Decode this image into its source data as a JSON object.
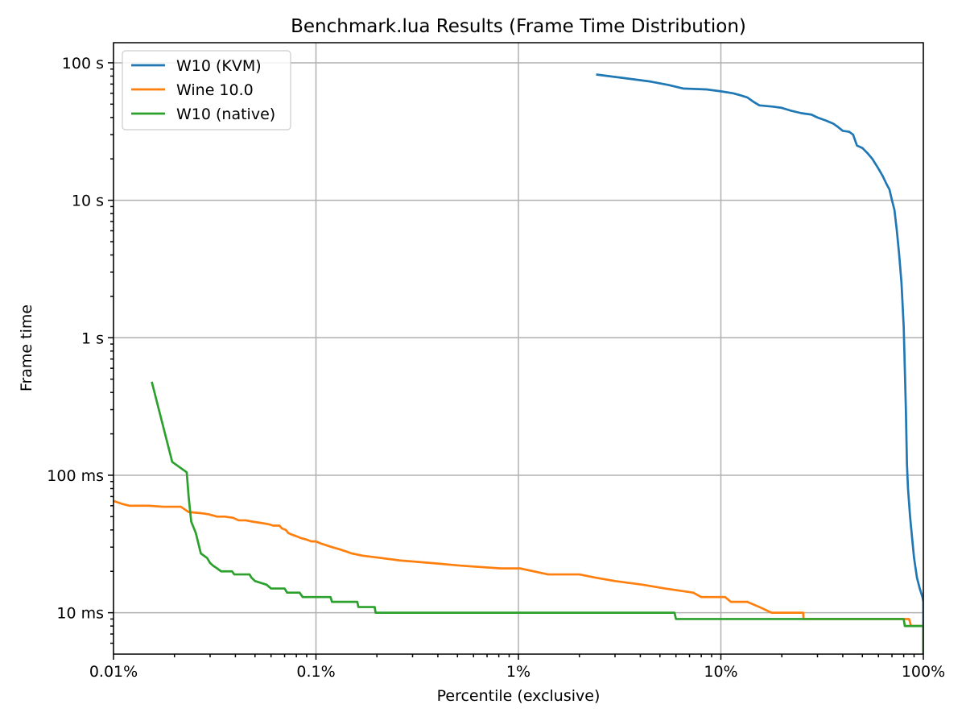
{
  "chart_data": {
    "type": "line",
    "title": "Benchmark.lua Results (Frame Time Distribution)",
    "xlabel": "Percentile (exclusive)",
    "ylabel": "Frame time",
    "x_scale": "log",
    "y_scale": "log",
    "xlim_percent": [
      0.01,
      100
    ],
    "ylim_seconds": [
      0.005,
      140
    ],
    "x_ticks": [
      {
        "value": 0.01,
        "label": "0.01%"
      },
      {
        "value": 0.1,
        "label": "0.1%"
      },
      {
        "value": 1,
        "label": "1%"
      },
      {
        "value": 10,
        "label": "10%"
      },
      {
        "value": 100,
        "label": "100%"
      }
    ],
    "y_ticks": [
      {
        "value": 0.01,
        "label": "10 ms"
      },
      {
        "value": 0.1,
        "label": "100 ms"
      },
      {
        "value": 1,
        "label": "1 s"
      },
      {
        "value": 10,
        "label": "10 s"
      },
      {
        "value": 100,
        "label": "100 s"
      }
    ],
    "grid": true,
    "legend_position": "top-left",
    "series": [
      {
        "name": "W10 (KVM)",
        "color": "#1f77b4",
        "points": [
          [
            2.45,
            82
          ],
          [
            3.2,
            78
          ],
          [
            4.5,
            73
          ],
          [
            5.5,
            69
          ],
          [
            6.5,
            65
          ],
          [
            8.5,
            64
          ],
          [
            10,
            62
          ],
          [
            11.5,
            60
          ],
          [
            12.5,
            58
          ],
          [
            13.5,
            56
          ],
          [
            14.5,
            52
          ],
          [
            15.5,
            49
          ],
          [
            18,
            48
          ],
          [
            20,
            47
          ],
          [
            22,
            45
          ],
          [
            25,
            43
          ],
          [
            28,
            42
          ],
          [
            30,
            40
          ],
          [
            33,
            38
          ],
          [
            36,
            36
          ],
          [
            38,
            34
          ],
          [
            40,
            32
          ],
          [
            43,
            31.5
          ],
          [
            45,
            30
          ],
          [
            47,
            25
          ],
          [
            50,
            24
          ],
          [
            53,
            22
          ],
          [
            56,
            20
          ],
          [
            60,
            17
          ],
          [
            63,
            15
          ],
          [
            66,
            13
          ],
          [
            68,
            12
          ],
          [
            70,
            10
          ],
          [
            72,
            8.5
          ],
          [
            74,
            6
          ],
          [
            76,
            4
          ],
          [
            78,
            2.5
          ],
          [
            80,
            1.2
          ],
          [
            81,
            0.6
          ],
          [
            82,
            0.3
          ],
          [
            83,
            0.12
          ],
          [
            84,
            0.08
          ],
          [
            86,
            0.05
          ],
          [
            88,
            0.035
          ],
          [
            90,
            0.025
          ],
          [
            93,
            0.018
          ],
          [
            96,
            0.015
          ],
          [
            99,
            0.013
          ],
          [
            100,
            0.012
          ],
          [
            100,
            0.005
          ]
        ]
      },
      {
        "name": "Wine 10.0",
        "color": "#ff7f0e",
        "points": [
          [
            0.01,
            0.065
          ],
          [
            0.011,
            0.062
          ],
          [
            0.012,
            0.06
          ],
          [
            0.015,
            0.06
          ],
          [
            0.0175,
            0.059
          ],
          [
            0.0215,
            0.059
          ],
          [
            0.0235,
            0.054
          ],
          [
            0.027,
            0.053
          ],
          [
            0.0295,
            0.052
          ],
          [
            0.0325,
            0.05
          ],
          [
            0.0355,
            0.05
          ],
          [
            0.039,
            0.049
          ],
          [
            0.0415,
            0.047
          ],
          [
            0.045,
            0.047
          ],
          [
            0.0485,
            0.046
          ],
          [
            0.0535,
            0.045
          ],
          [
            0.0585,
            0.044
          ],
          [
            0.0615,
            0.043
          ],
          [
            0.066,
            0.043
          ],
          [
            0.068,
            0.041
          ],
          [
            0.071,
            0.04
          ],
          [
            0.073,
            0.038
          ],
          [
            0.076,
            0.037
          ],
          [
            0.08,
            0.036
          ],
          [
            0.084,
            0.035
          ],
          [
            0.09,
            0.034
          ],
          [
            0.095,
            0.033
          ],
          [
            0.1,
            0.033
          ],
          [
            0.105,
            0.032
          ],
          [
            0.12,
            0.03
          ],
          [
            0.13,
            0.029
          ],
          [
            0.14,
            0.028
          ],
          [
            0.15,
            0.027
          ],
          [
            0.17,
            0.026
          ],
          [
            0.21,
            0.025
          ],
          [
            0.26,
            0.024
          ],
          [
            0.37,
            0.023
          ],
          [
            0.52,
            0.022
          ],
          [
            0.82,
            0.021
          ],
          [
            1.02,
            0.021
          ],
          [
            1.4,
            0.019
          ],
          [
            2.0,
            0.019
          ],
          [
            2.4,
            0.018
          ],
          [
            3.0,
            0.017
          ],
          [
            4.1,
            0.016
          ],
          [
            5.3,
            0.015
          ],
          [
            7.3,
            0.014
          ],
          [
            8.0,
            0.013
          ],
          [
            10.5,
            0.013
          ],
          [
            11.2,
            0.012
          ],
          [
            13.5,
            0.012
          ],
          [
            15.5,
            0.011
          ],
          [
            17.8,
            0.01
          ],
          [
            25.5,
            0.01
          ],
          [
            25.6,
            0.009
          ],
          [
            85,
            0.009
          ],
          [
            87,
            0.008
          ],
          [
            100,
            0.008
          ]
        ]
      },
      {
        "name": "W10 (native)",
        "color": "#2ca02c",
        "points": [
          [
            0.0155,
            0.47
          ],
          [
            0.0195,
            0.125
          ],
          [
            0.023,
            0.105
          ],
          [
            0.0235,
            0.07
          ],
          [
            0.0242,
            0.046
          ],
          [
            0.0255,
            0.038
          ],
          [
            0.027,
            0.027
          ],
          [
            0.029,
            0.025
          ],
          [
            0.03,
            0.023
          ],
          [
            0.031,
            0.022
          ],
          [
            0.0325,
            0.021
          ],
          [
            0.034,
            0.02
          ],
          [
            0.0385,
            0.02
          ],
          [
            0.0395,
            0.019
          ],
          [
            0.047,
            0.019
          ],
          [
            0.048,
            0.018
          ],
          [
            0.05,
            0.017
          ],
          [
            0.057,
            0.016
          ],
          [
            0.06,
            0.015
          ],
          [
            0.07,
            0.015
          ],
          [
            0.072,
            0.014
          ],
          [
            0.083,
            0.014
          ],
          [
            0.086,
            0.013
          ],
          [
            0.118,
            0.013
          ],
          [
            0.12,
            0.012
          ],
          [
            0.16,
            0.012
          ],
          [
            0.162,
            0.011
          ],
          [
            0.195,
            0.011
          ],
          [
            0.197,
            0.01
          ],
          [
            5.9,
            0.01
          ],
          [
            6.0,
            0.009
          ],
          [
            80,
            0.009
          ],
          [
            81,
            0.008
          ],
          [
            100,
            0.008
          ],
          [
            100,
            0.005
          ]
        ]
      }
    ]
  }
}
